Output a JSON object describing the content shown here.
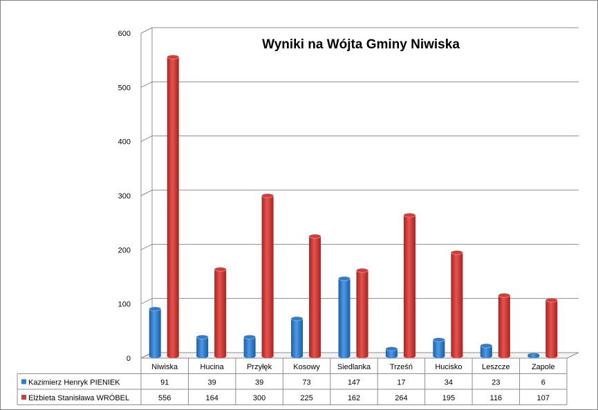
{
  "chart_data": {
    "type": "bar",
    "title": "Wyniki  na Wójta Gminy Niwiska",
    "categories": [
      "Niwiska",
      "Hucina",
      "Przyłęk",
      "Kosowy",
      "Siedlanka",
      "Trześń",
      "Hucisko",
      "Leszcze",
      "Zapole"
    ],
    "series": [
      {
        "name": "Kazimierz Henryk PIENIEK",
        "color": "#2f7ccf",
        "values": [
          91,
          39,
          39,
          73,
          147,
          17,
          34,
          23,
          6
        ]
      },
      {
        "name": "Elżbieta Stanisława WRÓBEL",
        "color": "#d83a36",
        "values": [
          556,
          164,
          300,
          225,
          162,
          264,
          195,
          116,
          107
        ]
      }
    ],
    "y_ticks": [
      "0",
      "100",
      "200",
      "300",
      "400",
      "500",
      "600"
    ],
    "ylim": [
      0,
      600
    ],
    "grid": true,
    "legend": "data-table"
  }
}
